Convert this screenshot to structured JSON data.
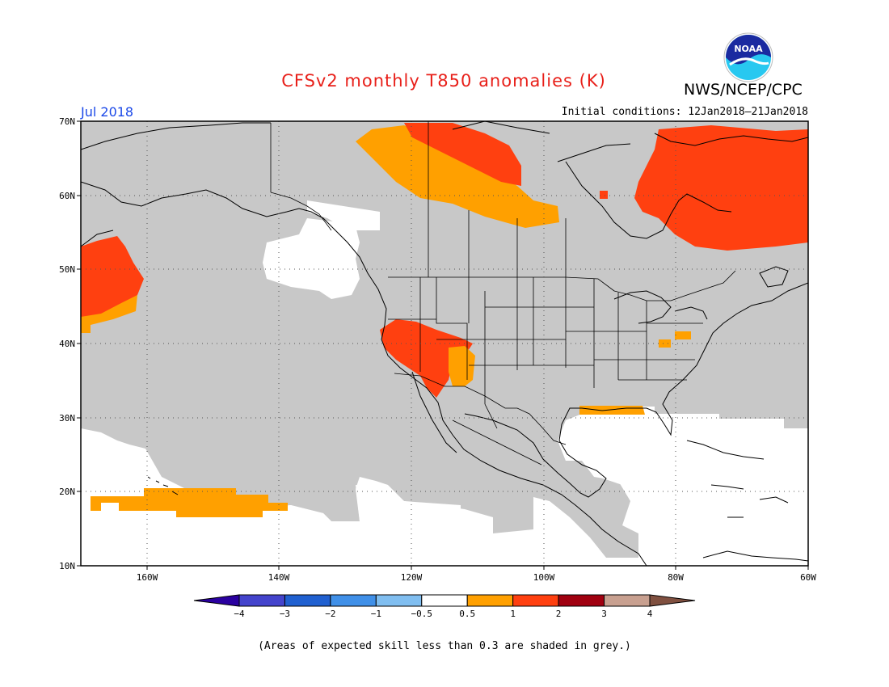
{
  "title": "CFSv2 monthly T850 anomalies (K)",
  "agency": "NWS/NCEP/CPC",
  "logo_text": "NOAA",
  "month": "Jul 2018",
  "initial_conditions": "Initial conditions: 12Jan2018–21Jan2018",
  "caption": "(Areas of expected skill less than 0.3 are shaded in grey.)",
  "colors": {
    "title": "#e8201a",
    "month": "#1a48e8",
    "grey_low_skill": "#c8c8c8",
    "land_lines": "#000000"
  },
  "map": {
    "lon_range": [
      -170,
      -60
    ],
    "lat_range": [
      10,
      70
    ],
    "lat_labels": [
      "70N",
      "60N",
      "50N",
      "40N",
      "30N",
      "20N",
      "10N"
    ],
    "lon_labels": [
      "160W",
      "140W",
      "120W",
      "100W",
      "80W",
      "60W"
    ]
  },
  "legend": {
    "bins": [
      {
        "color": "#2a00a0"
      },
      {
        "color": "#4444cc"
      },
      {
        "color": "#2060d0"
      },
      {
        "color": "#4090e8"
      },
      {
        "color": "#80bef0"
      },
      {
        "color": "#ffffff"
      },
      {
        "color": "#ffa000"
      },
      {
        "color": "#ff4010"
      },
      {
        "color": "#a00010"
      },
      {
        "color": "#c8a090"
      },
      {
        "color": "#805040"
      }
    ],
    "labels": [
      "−4",
      "−3",
      "−2",
      "−1",
      "−0.5",
      "0.5",
      "1",
      "2",
      "3",
      "4"
    ]
  },
  "anomaly_regions": [
    {
      "category": "0.5 to 1",
      "color": "#ffa000",
      "area": "northwestern Canada band near 60-68N"
    },
    {
      "category": "1 to 2",
      "color": "#ff4010",
      "area": "far northern Canada / Beaufort Sea"
    },
    {
      "category": "1 to 2",
      "color": "#ff4010",
      "area": "Hudson Bay to Labrador"
    },
    {
      "category": "1 to 2",
      "color": "#ff4010",
      "area": "North Pacific near 45-53N, 165W"
    },
    {
      "category": "1 to 2",
      "color": "#ff4010",
      "area": "California / Nevada"
    },
    {
      "category": "0.5 to 1",
      "color": "#ffa000",
      "area": "Arizona / Utah"
    },
    {
      "category": "0.5 to 1",
      "color": "#ffa000",
      "area": "Gulf Coast near 30N"
    },
    {
      "category": "0.5 to 1",
      "color": "#ffa000",
      "area": "Pennsylvania / Ohio"
    },
    {
      "category": "0.5 to 1",
      "color": "#ffa000",
      "area": "Pacific near Hawaii, 18-20N"
    }
  ]
}
